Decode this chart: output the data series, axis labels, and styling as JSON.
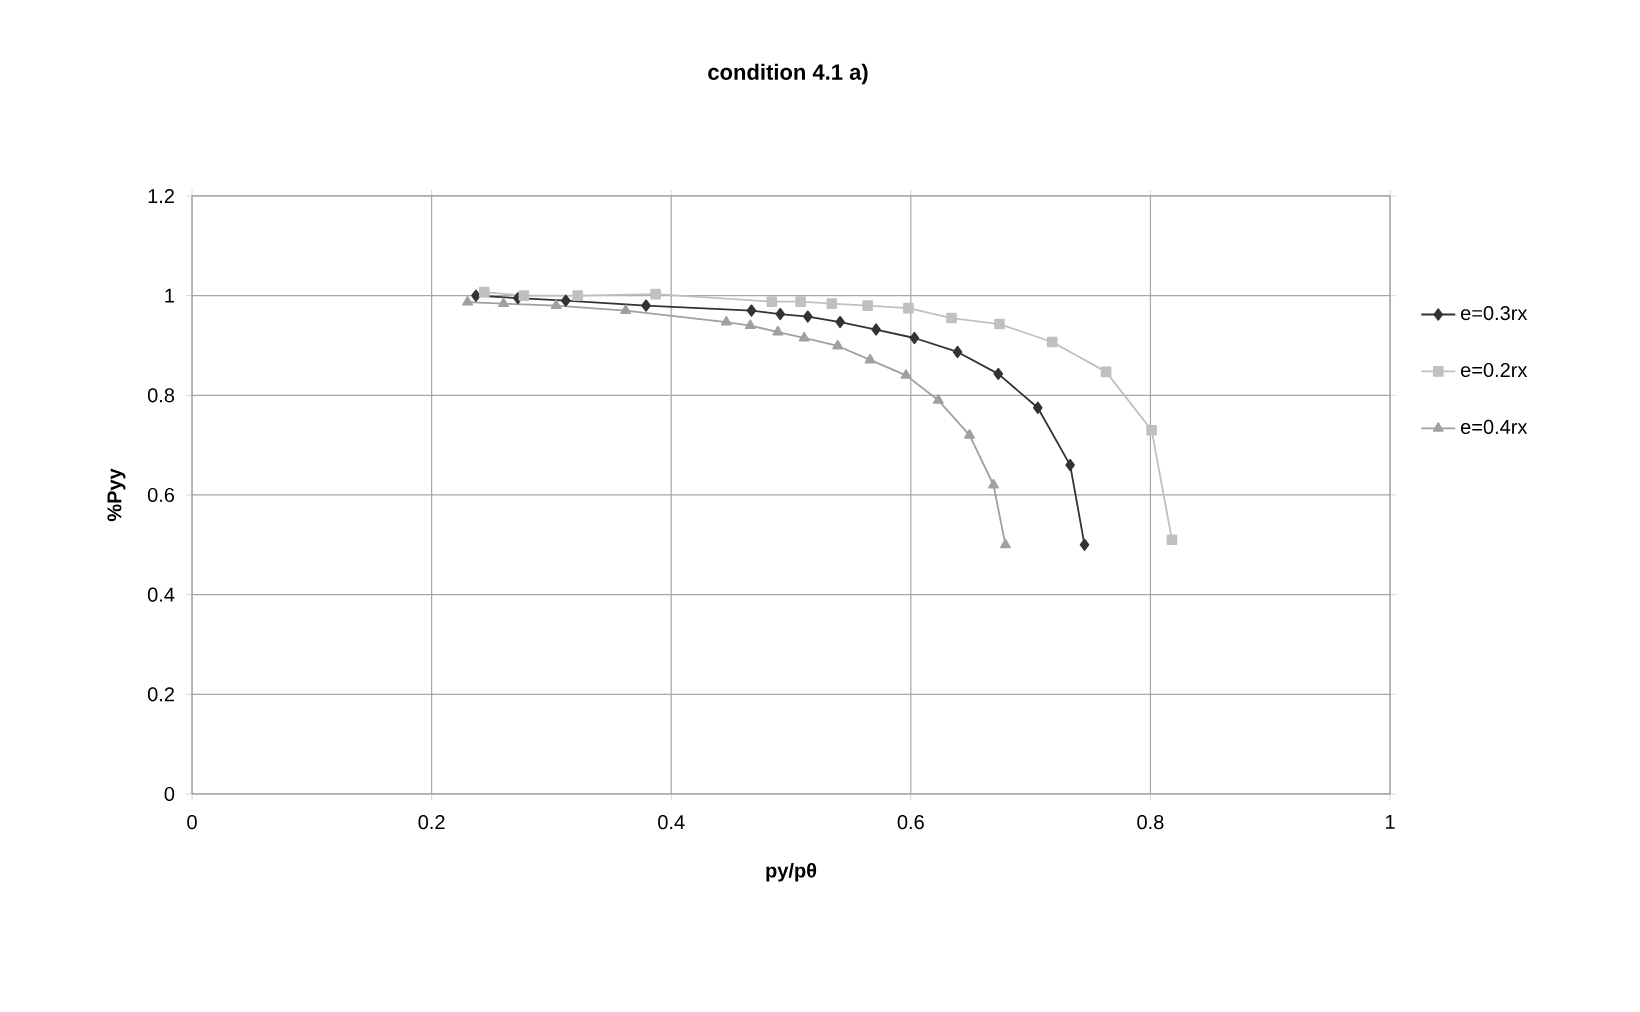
{
  "chart_data": {
    "type": "line",
    "title": "condition 4.1 a)",
    "xlabel": "py/pθ",
    "ylabel": "%Pyy",
    "xlim": [
      0,
      1
    ],
    "xticks": [
      0,
      0.2,
      0.4,
      0.6,
      0.8,
      1
    ],
    "ylim": [
      0,
      1.2
    ],
    "yticks": [
      0,
      0.2,
      0.4,
      0.6,
      0.8,
      1,
      1.2
    ],
    "grid": true,
    "legend": "right",
    "line_style": "solid",
    "series": [
      {
        "name": "e=0.3rx",
        "color": "#333333",
        "marker": "diamond",
        "x": [
          0.237,
          0.272,
          0.312,
          0.379,
          0.467,
          0.491,
          0.514,
          0.541,
          0.571,
          0.603,
          0.639,
          0.673,
          0.706,
          0.733,
          0.745
        ],
        "values": [
          1.0,
          0.995,
          0.99,
          0.98,
          0.97,
          0.963,
          0.958,
          0.947,
          0.932,
          0.915,
          0.887,
          0.843,
          0.775,
          0.66,
          0.5
        ]
      },
      {
        "name": "e=0.2rx",
        "color": "#c0c0c0",
        "marker": "square",
        "x": [
          0.244,
          0.277,
          0.322,
          0.387,
          0.484,
          0.508,
          0.534,
          0.564,
          0.598,
          0.634,
          0.674,
          0.718,
          0.763,
          0.801,
          0.818
        ],
        "values": [
          1.007,
          1.0,
          1.0,
          1.003,
          0.988,
          0.988,
          0.984,
          0.98,
          0.975,
          0.955,
          0.943,
          0.907,
          0.847,
          0.73,
          0.51
        ]
      },
      {
        "name": "e=0.4rx",
        "color": "#a0a0a0",
        "marker": "triangle",
        "x": [
          0.23,
          0.26,
          0.304,
          0.362,
          0.446,
          0.466,
          0.489,
          0.511,
          0.539,
          0.566,
          0.596,
          0.623,
          0.649,
          0.669,
          0.679
        ],
        "values": [
          0.987,
          0.984,
          0.98,
          0.97,
          0.947,
          0.94,
          0.927,
          0.915,
          0.899,
          0.871,
          0.84,
          0.79,
          0.72,
          0.62,
          0.5
        ]
      }
    ]
  }
}
